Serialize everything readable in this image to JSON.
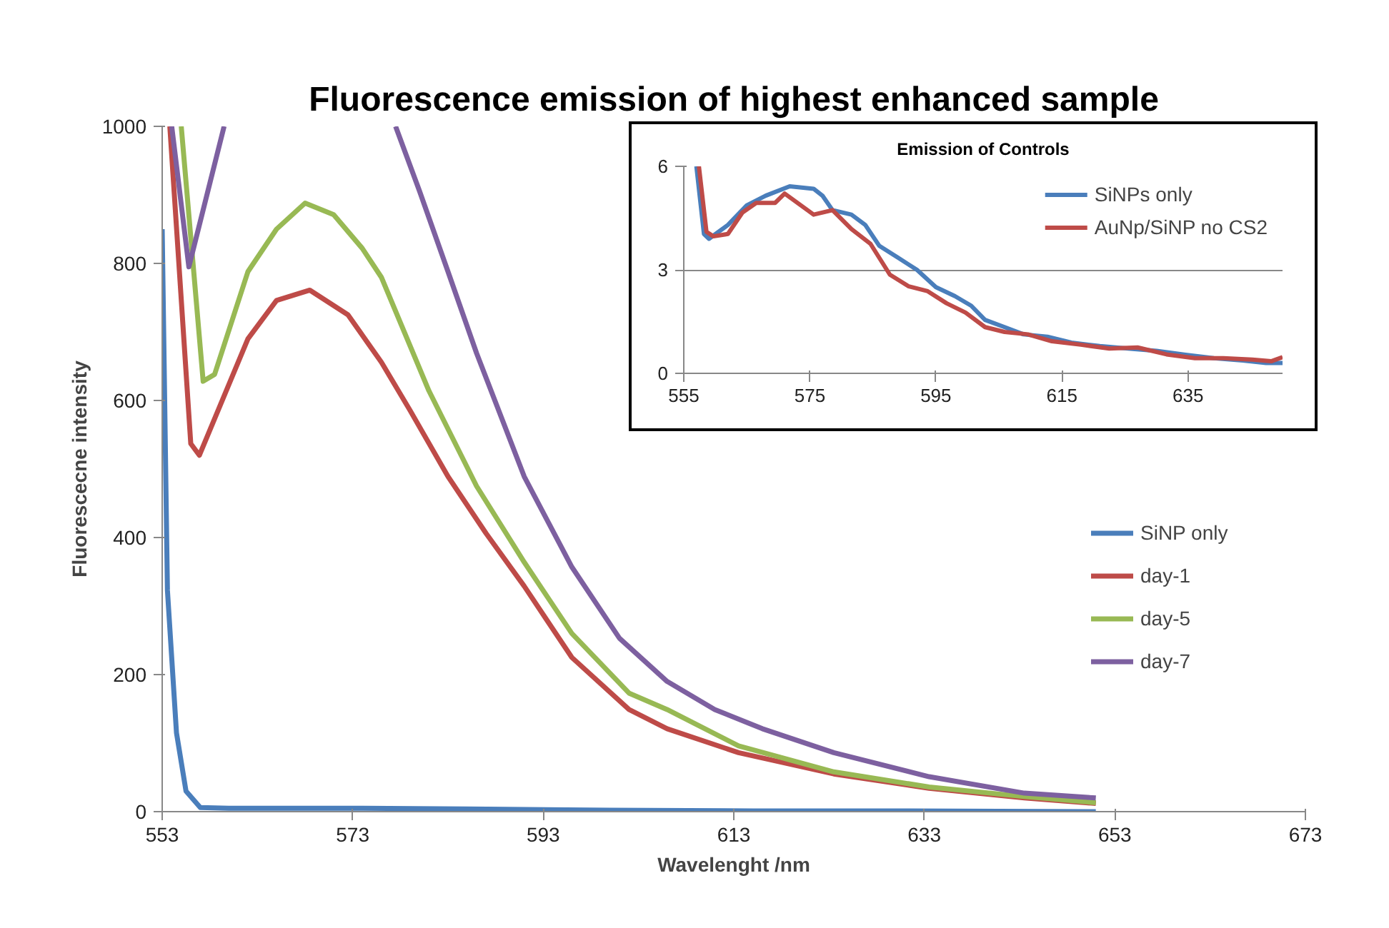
{
  "chart_data": [
    {
      "type": "line",
      "title": "Fluorescence emission of highest enhanced sample",
      "xlabel": "Wavelenght /nm",
      "ylabel": "Fluorescecne intensity",
      "xlim": [
        553,
        673
      ],
      "ylim": [
        0,
        1000
      ],
      "xticks": [
        553,
        573,
        593,
        613,
        633,
        653,
        673
      ],
      "yticks": [
        0,
        200,
        400,
        600,
        800,
        1000
      ],
      "grid": false,
      "legend": "right",
      "series": [
        {
          "name": "SiNP only",
          "color": "#4a7ebb",
          "x": [
            553,
            553.55,
            554.5,
            555.5,
            557,
            560,
            565,
            573,
            585,
            600,
            615,
            630,
            651
          ],
          "values": [
            850,
            323,
            115,
            30,
            6,
            5,
            5,
            5,
            4,
            2,
            1,
            1,
            0
          ]
        },
        {
          "name": "day-1",
          "color": "#be4b48",
          "x": [
            553.8,
            556,
            556.9,
            562,
            565,
            568.5,
            572.5,
            576,
            579,
            583,
            587,
            591,
            596,
            602,
            606,
            613.5,
            623.5,
            633.5,
            643.5,
            651
          ],
          "values": [
            1000,
            537,
            520,
            690,
            746,
            761,
            725,
            656,
            586,
            489,
            406,
            329,
            225,
            149,
            121,
            86,
            55,
            34,
            20,
            12
          ]
        },
        {
          "name": "day-5",
          "color": "#98b954",
          "x": [
            555,
            557.3,
            558.5,
            562,
            565,
            568,
            571,
            574,
            576,
            578.5,
            581,
            586,
            591,
            596,
            602,
            606,
            613.5,
            623.5,
            633.5,
            643.5,
            651
          ],
          "values": [
            1000,
            628,
            638,
            788,
            850,
            888,
            871,
            822,
            780,
            697,
            614,
            475,
            364,
            260,
            173,
            149,
            96,
            58,
            36,
            22,
            13
          ]
        },
        {
          "name": "day-7",
          "color": "#7d60a0",
          "x": [
            554,
            555.8,
            559.5,
            568,
            577.5,
            580,
            583,
            586,
            591,
            596,
            601,
            606,
            611,
            616,
            623.5,
            633.5,
            643.5,
            651
          ],
          "values": [
            1000,
            795,
            1000,
            null,
            1000,
            906,
            788,
            669,
            489,
            357,
            253,
            190,
            149,
            121,
            86,
            51,
            27,
            20
          ]
        }
      ]
    },
    {
      "type": "line",
      "title": "Emission of Controls",
      "xlim": [
        555,
        650
      ],
      "ylim": [
        0,
        6
      ],
      "xticks": [
        555,
        575,
        595,
        615,
        635
      ],
      "yticks": [
        0,
        3,
        6
      ],
      "grid": "y",
      "legend": "top right",
      "series": [
        {
          "name": "SiNPs only",
          "color": "#4a7ebb",
          "x": [
            557,
            558.2,
            559,
            562,
            565,
            568,
            571.8,
            575.6,
            577,
            578.6,
            581.6,
            583.8,
            586,
            589,
            592,
            595,
            598,
            600.6,
            602.8,
            605.9,
            608.9,
            612.7,
            616.5,
            621,
            625.5,
            630,
            634.6,
            639.1,
            643.7,
            647.4,
            650
          ],
          "values": [
            6,
            4.04,
            3.9,
            4.3,
            4.87,
            5.15,
            5.42,
            5.35,
            5.15,
            4.73,
            4.6,
            4.3,
            3.7,
            3.35,
            3.0,
            2.5,
            2.24,
            1.96,
            1.55,
            1.34,
            1.13,
            1.06,
            0.89,
            0.79,
            0.72,
            0.65,
            0.54,
            0.44,
            0.37,
            0.3,
            0.3
          ]
        },
        {
          "name": "AuNp/SiNP no CS2",
          "color": "#be4b48",
          "x": [
            557.4,
            558.6,
            559.7,
            562,
            564.3,
            566.5,
            569.5,
            571,
            572.6,
            575.6,
            578.6,
            581.6,
            584.6,
            587.7,
            590.7,
            593.7,
            596.7,
            599.7,
            602.8,
            605.9,
            609.6,
            613.4,
            618,
            622.5,
            627,
            631.6,
            636.1,
            640.6,
            645.2,
            648.2,
            650
          ],
          "values": [
            6,
            4.1,
            3.97,
            4.04,
            4.66,
            4.94,
            4.94,
            5.21,
            5.0,
            4.6,
            4.73,
            4.18,
            3.76,
            2.86,
            2.52,
            2.38,
            2.03,
            1.76,
            1.34,
            1.2,
            1.13,
            0.93,
            0.83,
            0.72,
            0.75,
            0.55,
            0.44,
            0.44,
            0.4,
            0.35,
            0.47
          ]
        }
      ]
    }
  ]
}
